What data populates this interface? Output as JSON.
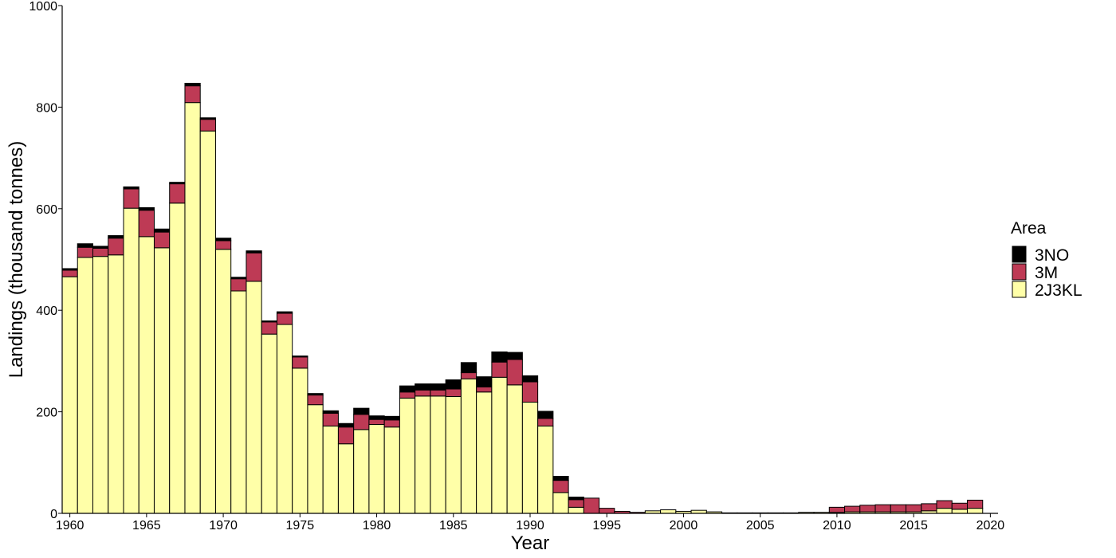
{
  "chart_data": {
    "type": "bar",
    "stacked": true,
    "xlabel": "Year",
    "ylabel": "Landings (thousand tonnes)",
    "xlim": [
      1959.5,
      2020.5
    ],
    "ylim": [
      0,
      1000
    ],
    "x_ticks": [
      1960,
      1965,
      1970,
      1975,
      1980,
      1985,
      1990,
      1995,
      2000,
      2005,
      2010,
      2015,
      2020
    ],
    "y_ticks": [
      0,
      200,
      400,
      600,
      800,
      1000
    ],
    "grid": false,
    "legend": {
      "title": "Area",
      "position": "right",
      "entries": [
        "3NO",
        "3M",
        "2J3KL"
      ]
    },
    "x": [
      1960,
      1961,
      1962,
      1963,
      1964,
      1965,
      1966,
      1967,
      1968,
      1969,
      1970,
      1971,
      1972,
      1973,
      1974,
      1975,
      1976,
      1977,
      1978,
      1979,
      1980,
      1981,
      1982,
      1983,
      1984,
      1985,
      1986,
      1987,
      1988,
      1989,
      1990,
      1991,
      1992,
      1993,
      1994,
      1995,
      1996,
      1997,
      1998,
      1999,
      2000,
      2001,
      2002,
      2003,
      2004,
      2005,
      2006,
      2007,
      2008,
      2009,
      2010,
      2011,
      2012,
      2013,
      2014,
      2015,
      2016,
      2017,
      2018,
      2019
    ],
    "series": [
      {
        "name": "2J3KL",
        "color": "#FFFFA8",
        "values": [
          466,
          504,
          506,
          509,
          601,
          545,
          523,
          611,
          809,
          753,
          520,
          438,
          457,
          353,
          372,
          286,
          214,
          172,
          137,
          165,
          175,
          170,
          227,
          231,
          231,
          230,
          265,
          239,
          268,
          253,
          219,
          172,
          41,
          12,
          0,
          0,
          0,
          0,
          5,
          7,
          4,
          6,
          3,
          1,
          1,
          1,
          1,
          1,
          2,
          2,
          2,
          3,
          3,
          3,
          3,
          3,
          5,
          10,
          8,
          10
        ]
      },
      {
        "name": "3M",
        "color": "#BE3A55",
        "values": [
          13,
          20,
          16,
          33,
          38,
          52,
          31,
          38,
          33,
          23,
          17,
          24,
          56,
          24,
          22,
          22,
          19,
          25,
          33,
          30,
          10,
          14,
          12,
          12,
          12,
          15,
          12,
          10,
          30,
          50,
          40,
          15,
          24,
          15,
          30,
          10,
          4,
          2,
          0,
          0,
          0,
          0,
          0,
          0,
          0,
          0,
          0,
          0,
          0,
          0,
          10,
          11,
          13,
          14,
          14,
          14,
          14,
          15,
          12,
          16
        ]
      },
      {
        "name": "3NO",
        "color": "#000000",
        "values": [
          3,
          7,
          4,
          5,
          4,
          5,
          6,
          3,
          5,
          3,
          5,
          3,
          4,
          2,
          3,
          2,
          3,
          5,
          7,
          12,
          7,
          7,
          12,
          12,
          12,
          18,
          20,
          20,
          20,
          14,
          12,
          14,
          8,
          5,
          0,
          0,
          0,
          0,
          0,
          0,
          0,
          0,
          0,
          0,
          0,
          0,
          0,
          0,
          0,
          0,
          0,
          0,
          0,
          0,
          0,
          0,
          0,
          0,
          0,
          0
        ]
      }
    ]
  }
}
